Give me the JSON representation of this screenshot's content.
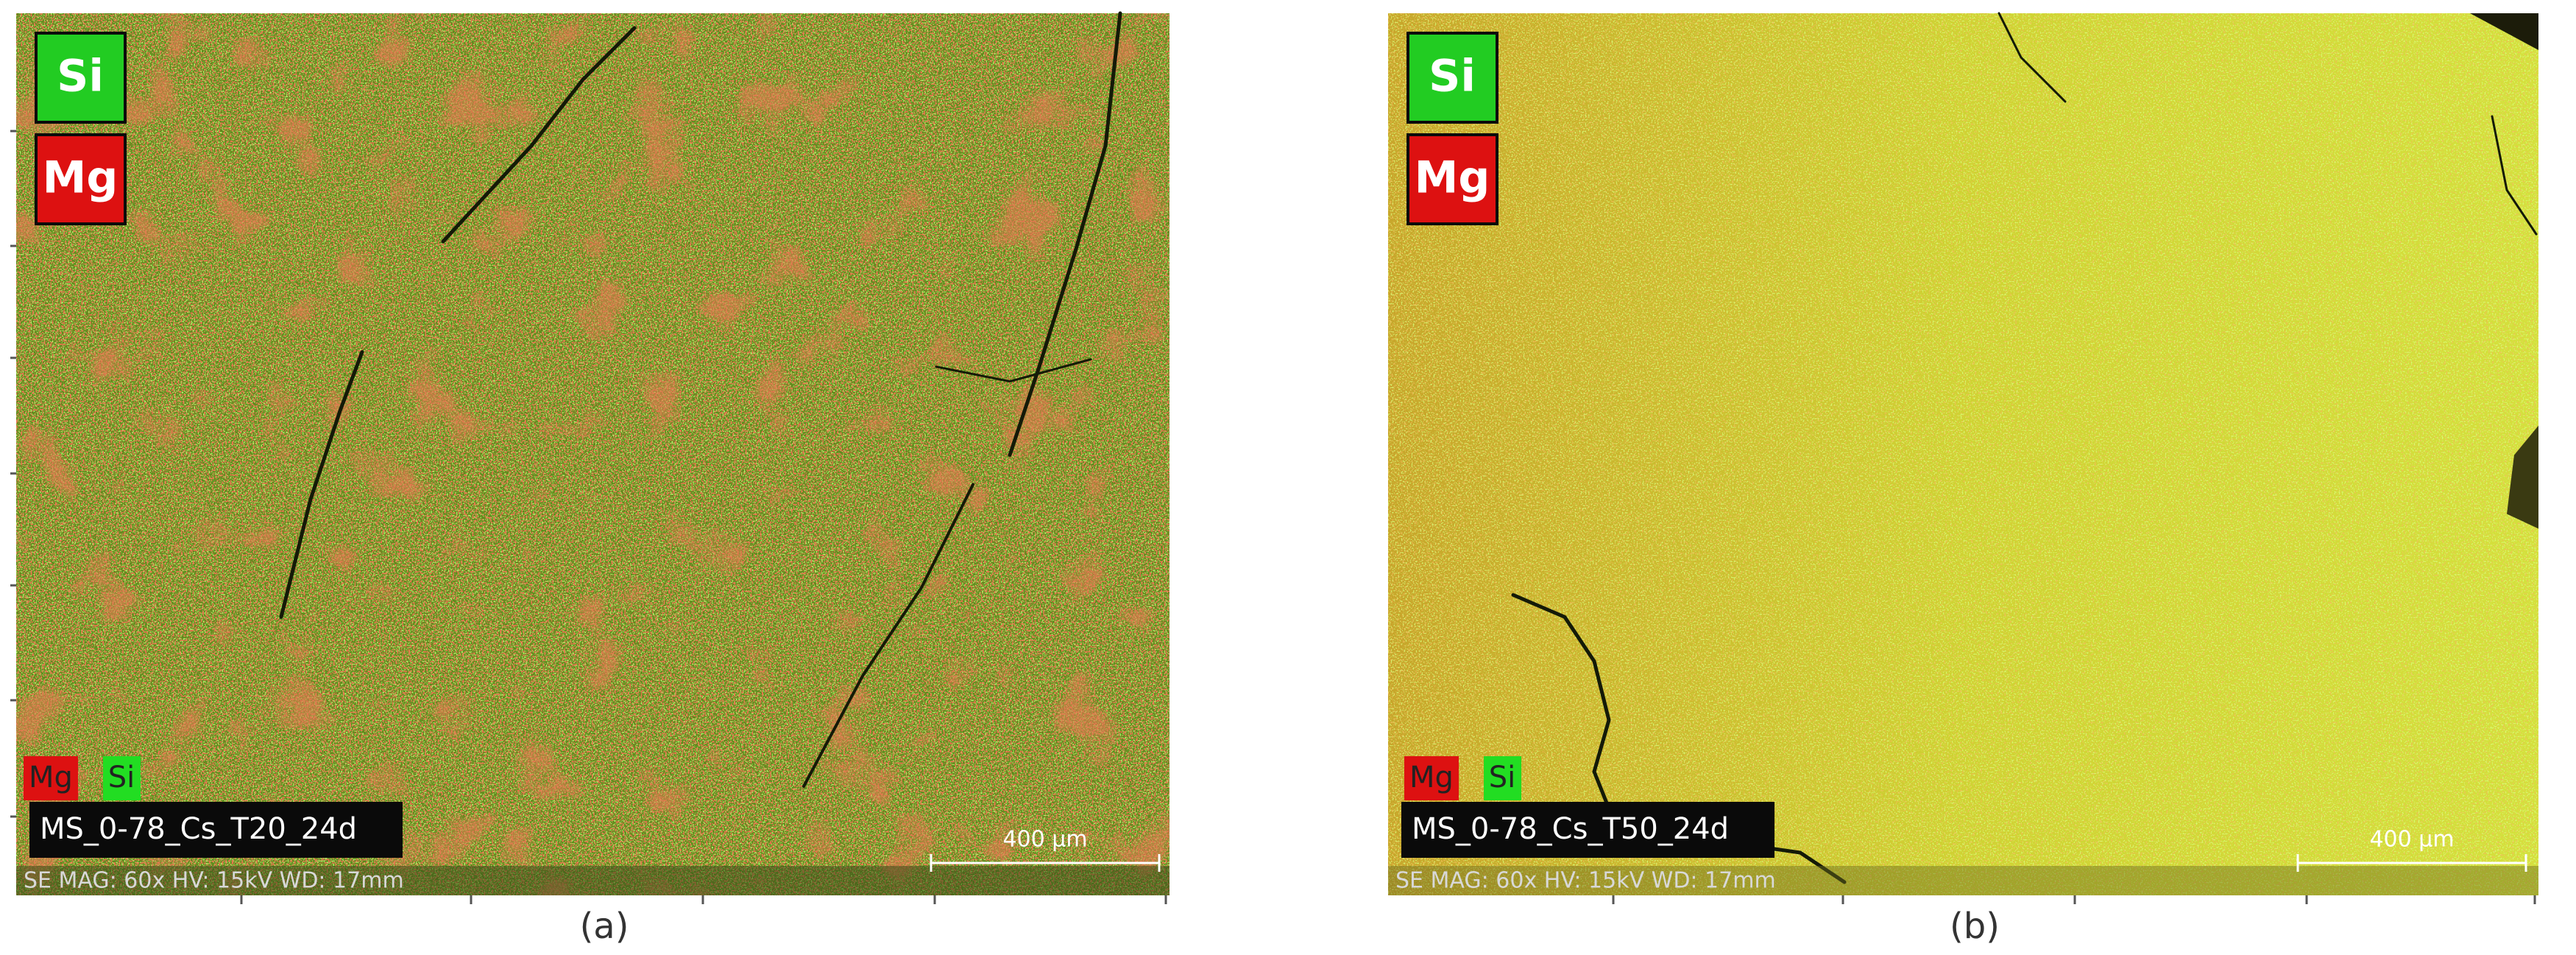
{
  "panels": [
    {
      "element_labels": [
        "Si",
        "Mg"
      ],
      "legend": [
        "Mg",
        "Si"
      ],
      "sample": "MS_0-78_Cs_T20_24d",
      "scale_bar": "400 µm",
      "info": "SE  MAG: 60x  HV: 15kV  WD: 17mm",
      "caption": "(a)"
    },
    {
      "element_labels": [
        "Si",
        "Mg"
      ],
      "legend": [
        "Mg",
        "Si"
      ],
      "sample": "MS_0-78_Cs_T50_24d",
      "scale_bar": "400 µm",
      "info": "SE  MAG: 60x  HV: 15kV  WD: 17mm",
      "caption": "(b)"
    }
  ]
}
